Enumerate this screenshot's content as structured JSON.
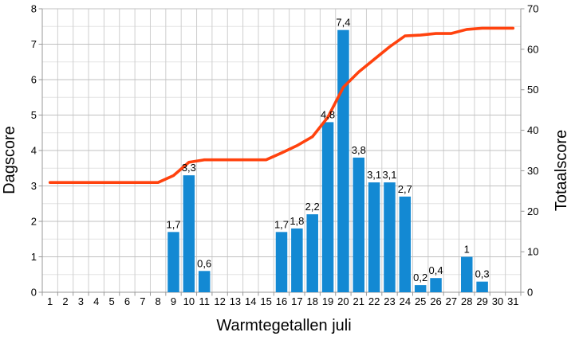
{
  "chart_data": {
    "type": "bar+line",
    "title": "",
    "xlabel": "Warmtegetallen juli",
    "ylabel_left": "Dagscore",
    "ylabel_right": "Totaalscore",
    "days": [
      1,
      2,
      3,
      4,
      5,
      6,
      7,
      8,
      9,
      10,
      11,
      12,
      13,
      14,
      15,
      16,
      17,
      18,
      19,
      20,
      21,
      22,
      23,
      24,
      25,
      26,
      27,
      28,
      29,
      30,
      31
    ],
    "ylim_left": [
      0,
      8
    ],
    "ylim_right": [
      0,
      70
    ],
    "yticks_left": [
      0,
      1,
      2,
      3,
      4,
      5,
      6,
      7,
      8
    ],
    "yticks_right": [
      0,
      10,
      20,
      30,
      40,
      50,
      60,
      70
    ],
    "grid": true,
    "legend": "none",
    "bars": {
      "axis": "left",
      "points": [
        {
          "day": 9,
          "value": 1.7,
          "label": "1,7"
        },
        {
          "day": 10,
          "value": 3.3,
          "label": "3,3"
        },
        {
          "day": 11,
          "value": 0.6,
          "label": "0,6"
        },
        {
          "day": 16,
          "value": 1.7,
          "label": "1,7"
        },
        {
          "day": 17,
          "value": 1.8,
          "label": "1,8"
        },
        {
          "day": 18,
          "value": 2.2,
          "label": "2,2"
        },
        {
          "day": 19,
          "value": 4.8,
          "label": "4,8"
        },
        {
          "day": 20,
          "value": 7.4,
          "label": "7,4"
        },
        {
          "day": 21,
          "value": 3.8,
          "label": "3,8"
        },
        {
          "day": 22,
          "value": 3.1,
          "label": "3,1"
        },
        {
          "day": 23,
          "value": 3.1,
          "label": "3,1"
        },
        {
          "day": 24,
          "value": 2.7,
          "label": "2,7"
        },
        {
          "day": 25,
          "value": 0.2,
          "label": "0,2"
        },
        {
          "day": 26,
          "value": 0.4,
          "label": "0,4"
        },
        {
          "day": 28,
          "value": 1,
          "label": "1"
        },
        {
          "day": 29,
          "value": 0.3,
          "label": "0,3"
        }
      ]
    },
    "line": {
      "axis": "right",
      "values": [
        27.1,
        27.1,
        27.1,
        27.1,
        27.1,
        27.1,
        27.1,
        27.1,
        28.8,
        32.1,
        32.7,
        32.7,
        32.7,
        32.7,
        32.7,
        34.4,
        36.2,
        38.4,
        43.2,
        50.6,
        54.4,
        57.5,
        60.6,
        63.3,
        63.5,
        63.9,
        63.9,
        64.9,
        65.2,
        65.2,
        65.2
      ]
    },
    "colors": {
      "bar": "#1389d3",
      "line": "#ff420e",
      "grid_major": "#c0c0c0",
      "grid_minor": "#e3e3e3",
      "grid_vertical": "#cfcfcf",
      "axis": "#999999",
      "text": "#000000"
    }
  }
}
